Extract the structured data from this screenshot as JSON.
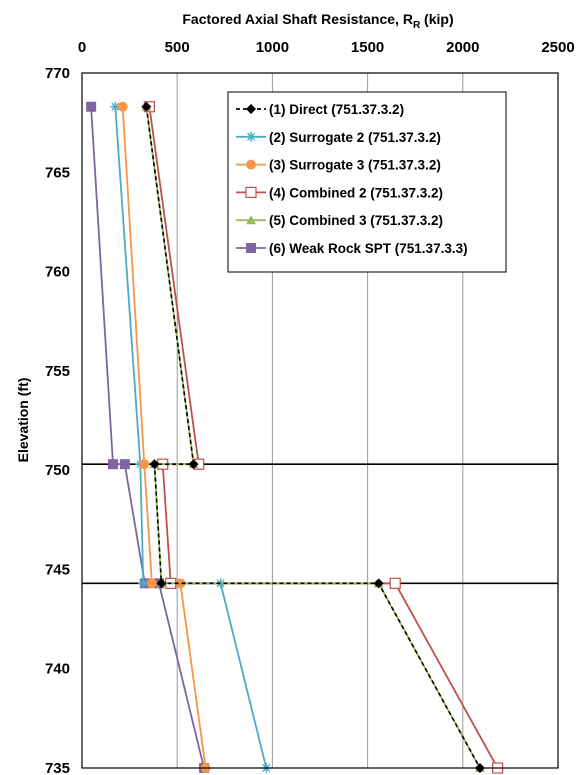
{
  "chart_data": {
    "type": "line",
    "x_axis_title": "Factored Axial Shaft Resistance, R",
    "x_axis_title_subscript": "R",
    "x_axis_title_unit": " (kip)",
    "y_axis_title": "Elevation (ft)",
    "xlim": [
      0,
      2500
    ],
    "ylim": [
      735,
      770
    ],
    "x_ticks": [
      "0",
      "500",
      "1000",
      "1500",
      "2000",
      "2500"
    ],
    "y_ticks": [
      "770",
      "765",
      "760",
      "755",
      "750",
      "745",
      "740",
      "735"
    ],
    "x_tick_values": [
      0,
      500,
      1000,
      1500,
      2000,
      2500
    ],
    "y_tick_values": [
      770,
      765,
      760,
      755,
      750,
      745,
      740,
      735
    ],
    "grid": "vertical",
    "x_axis_position": "top",
    "legend_position": "top-right",
    "reference_lines_y": [
      750.3,
      744.3
    ],
    "series": [
      {
        "name": "(1) Direct (751.37.3.2)",
        "color": "#000000",
        "dash": "dashed",
        "marker": "diamond",
        "points": [
          [
            338,
            768.3
          ],
          [
            586,
            750.3
          ],
          [
            381,
            750.3
          ],
          [
            417,
            744.3
          ],
          [
            1558,
            744.3
          ],
          [
            2090,
            735
          ]
        ]
      },
      {
        "name": "(2) Surrogate 2 (751.37.3.2)",
        "color": "#4BACC6",
        "dash": "solid",
        "marker": "star",
        "points": [
          [
            175,
            768.3
          ],
          [
            306,
            750.3
          ],
          [
            322,
            744.3
          ],
          [
            728,
            744.3
          ],
          [
            968,
            735
          ]
        ]
      },
      {
        "name": "(3) Surrogate 3 (751.37.3.2)",
        "color": "#F79646",
        "dash": "solid",
        "marker": "circle",
        "points": [
          [
            214,
            768.3
          ],
          [
            327,
            750.3
          ],
          [
            367,
            744.3
          ],
          [
            517,
            744.3
          ],
          [
            649,
            735
          ]
        ]
      },
      {
        "name": "(4) Combined 2 (751.37.3.2)",
        "color": "#C0504D",
        "dash": "solid",
        "marker": "open-square",
        "points": [
          [
            354,
            768.3
          ],
          [
            613,
            750.3
          ],
          [
            424,
            750.3
          ],
          [
            466,
            744.3
          ],
          [
            1645,
            744.3
          ],
          [
            2183,
            735
          ]
        ]
      },
      {
        "name": "(5) Combined 3 (751.37.3.2)",
        "color": "#9BBB59",
        "dash": "solid",
        "marker": "triangle",
        "points": [
          [
            338,
            768.3
          ],
          [
            586,
            750.3
          ],
          [
            381,
            750.3
          ],
          [
            417,
            744.3
          ],
          [
            1558,
            744.3
          ],
          [
            2090,
            735
          ]
        ]
      },
      {
        "name": "(6) Weak Rock SPT (751.37.3.3)",
        "color": "#8064A2",
        "dash": "solid",
        "marker": "square",
        "points": [
          [
            48,
            768.3
          ],
          [
            163,
            750.3
          ],
          [
            225,
            750.3
          ],
          [
            330,
            744.3
          ],
          [
            404,
            744.3
          ],
          [
            641,
            735
          ]
        ]
      }
    ]
  }
}
